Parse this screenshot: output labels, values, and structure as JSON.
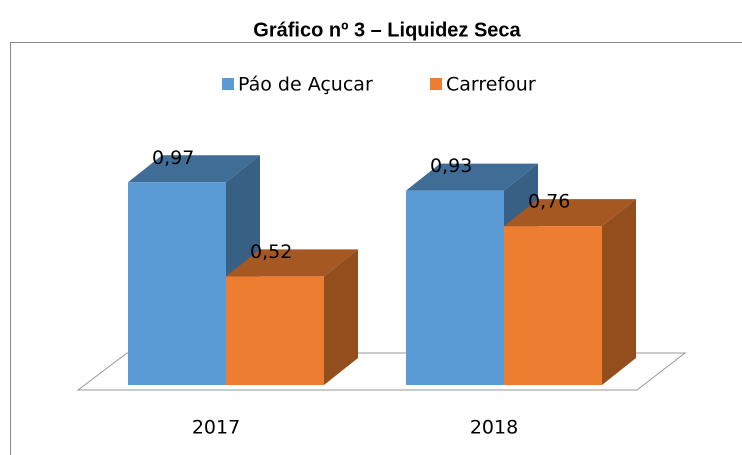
{
  "chart_data": {
    "type": "bar3d",
    "title": "Gráfico nº 3 – Liquidez Seca",
    "categories": [
      "2017",
      "2018"
    ],
    "series": [
      {
        "name": "Páo de Açucar",
        "color": "#5b9bd5",
        "values": [
          0.97,
          0.93
        ],
        "value_labels": [
          "0,97",
          "0,93"
        ]
      },
      {
        "name": "Carrefour",
        "color": "#ed7d31",
        "values": [
          0.52,
          0.76
        ],
        "value_labels": [
          "0,52",
          "0,76"
        ]
      }
    ]
  }
}
